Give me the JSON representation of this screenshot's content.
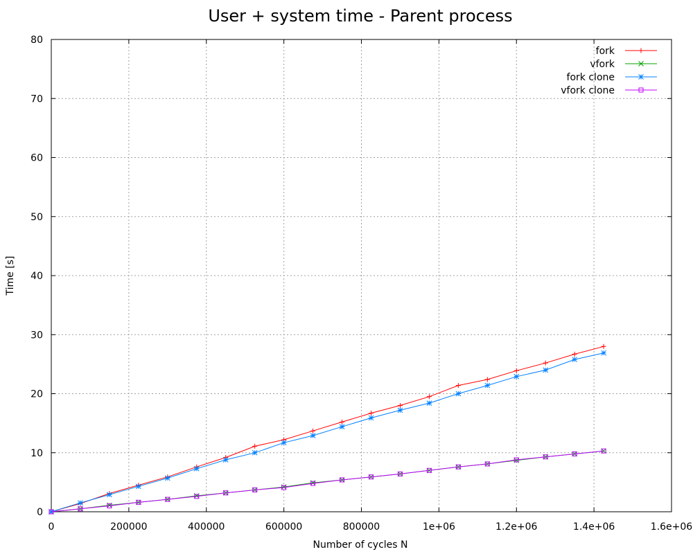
{
  "chart_data": {
    "type": "line",
    "title": "User + system time - Parent process",
    "xlabel": "Number of cycles N",
    "ylabel": "Time [s]",
    "xlim": [
      0,
      1600000
    ],
    "ylim": [
      0,
      80
    ],
    "grid": true,
    "legend_position": "top-right",
    "xticks": [
      {
        "value": 0,
        "label": "0"
      },
      {
        "value": 200000,
        "label": "200000"
      },
      {
        "value": 400000,
        "label": "400000"
      },
      {
        "value": 600000,
        "label": "600000"
      },
      {
        "value": 800000,
        "label": "800000"
      },
      {
        "value": 1000000,
        "label": "1e+06"
      },
      {
        "value": 1200000,
        "label": "1.2e+06"
      },
      {
        "value": 1400000,
        "label": "1.4e+06"
      },
      {
        "value": 1600000,
        "label": "1.6e+06"
      }
    ],
    "yticks": [
      {
        "value": 0,
        "label": "0"
      },
      {
        "value": 10,
        "label": "10"
      },
      {
        "value": 20,
        "label": "20"
      },
      {
        "value": 30,
        "label": "30"
      },
      {
        "value": 40,
        "label": "40"
      },
      {
        "value": 50,
        "label": "50"
      },
      {
        "value": 60,
        "label": "60"
      },
      {
        "value": 70,
        "label": "70"
      },
      {
        "value": 80,
        "label": "80"
      }
    ],
    "x": [
      0,
      75000,
      150000,
      225000,
      300000,
      375000,
      450000,
      525000,
      600000,
      675000,
      750000,
      825000,
      900000,
      975000,
      1050000,
      1125000,
      1200000,
      1275000,
      1350000,
      1425000
    ],
    "series": [
      {
        "name": "fork",
        "color": "#ff0000",
        "marker": "plus",
        "values": [
          0,
          1.4,
          3.1,
          4.5,
          5.9,
          7.6,
          9.2,
          11.1,
          12.2,
          13.7,
          15.2,
          16.7,
          18.0,
          19.5,
          21.4,
          22.4,
          23.9,
          25.2,
          26.7,
          28.0
        ]
      },
      {
        "name": "vfork",
        "color": "#00a000",
        "marker": "cross",
        "values": [
          0,
          0.5,
          1.1,
          1.6,
          2.1,
          2.7,
          3.2,
          3.7,
          4.2,
          4.9,
          5.4,
          5.9,
          6.4,
          7.0,
          7.6,
          8.1,
          8.7,
          9.3,
          9.8,
          10.3
        ]
      },
      {
        "name": "fork clone",
        "color": "#0080ff",
        "marker": "star",
        "values": [
          0,
          1.5,
          2.9,
          4.3,
          5.7,
          7.3,
          8.8,
          10.0,
          11.7,
          12.9,
          14.4,
          15.9,
          17.2,
          18.4,
          20.0,
          21.4,
          22.9,
          24.0,
          25.8,
          26.9
        ]
      },
      {
        "name": "vfork clone",
        "color": "#c000ff",
        "marker": "square",
        "values": [
          0,
          0.5,
          1.0,
          1.6,
          2.1,
          2.6,
          3.2,
          3.7,
          4.1,
          4.8,
          5.4,
          5.9,
          6.4,
          7.0,
          7.6,
          8.1,
          8.8,
          9.3,
          9.8,
          10.3
        ]
      }
    ]
  }
}
